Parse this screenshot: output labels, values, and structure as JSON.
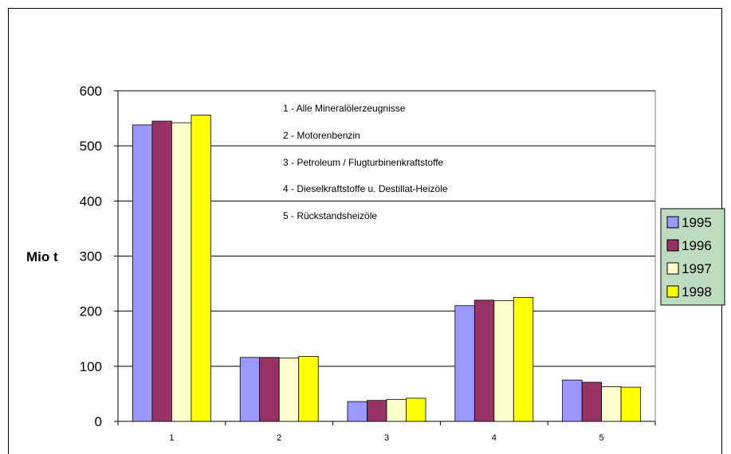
{
  "chart_data": {
    "type": "bar",
    "categories": [
      "1",
      "2",
      "3",
      "4",
      "5"
    ],
    "series": [
      {
        "name": "1995",
        "color": "#9999ff",
        "values": [
          538,
          116,
          36,
          210,
          75
        ]
      },
      {
        "name": "1996",
        "color": "#993366",
        "values": [
          545,
          116,
          38,
          220,
          71
        ]
      },
      {
        "name": "1997",
        "color": "#ffffcc",
        "values": [
          542,
          115,
          40,
          219,
          63
        ]
      },
      {
        "name": "1998",
        "color": "#ffff00",
        "values": [
          556,
          118,
          42,
          225,
          62
        ]
      }
    ],
    "ylabel": "Mio t",
    "ylim": [
      0,
      600
    ],
    "yticks": [
      0,
      100,
      200,
      300,
      400,
      500,
      600
    ],
    "grid": true,
    "legend_position": "right",
    "legend_background": "#c0dcc0",
    "annotations": [
      "1 - Alle Mineralölerzeugnisse",
      "2 - Motorenbenzin",
      "3 - Petroleum / Flugturbinenkraftstoffe",
      "4 - Dieselkraftstoffe u. Destillat-Heizöle",
      "5 - Rückstandsheizöle"
    ]
  }
}
